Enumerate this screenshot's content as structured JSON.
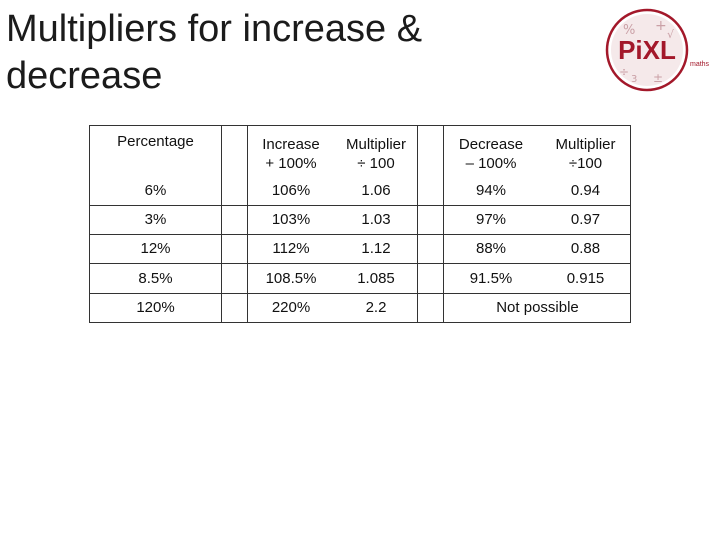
{
  "title": {
    "line1": "Multipliers for increase &",
    "line2": "decrease"
  },
  "logo": {
    "text": "PiXL",
    "subtext": "maths",
    "brand_color": "#a3182a"
  },
  "table": {
    "headers": {
      "percentage": "Percentage",
      "increase": [
        "Increase",
        "+ 100%"
      ],
      "inc_multiplier": [
        "Multiplier",
        "÷ 100"
      ],
      "decrease": [
        "Decrease",
        "– 100%"
      ],
      "dec_multiplier": [
        "Multiplier",
        "÷100"
      ]
    },
    "rows": [
      {
        "percentage": "6%",
        "increase": "106%",
        "inc_multiplier": "1.06",
        "decrease": "94%",
        "dec_multiplier": "0.94"
      },
      {
        "percentage": "3%",
        "increase": "103%",
        "inc_multiplier": "1.03",
        "decrease": "97%",
        "dec_multiplier": "0.97"
      },
      {
        "percentage": "12%",
        "increase": "112%",
        "inc_multiplier": "1.12",
        "decrease": "88%",
        "dec_multiplier": "0.88"
      },
      {
        "percentage": "8.5%",
        "increase": "108.5%",
        "inc_multiplier": "1.085",
        "decrease": "91.5%",
        "dec_multiplier": "0.915"
      },
      {
        "percentage": "120%",
        "increase": "220%",
        "inc_multiplier": "2.2",
        "decrease_combined": "Not possible"
      }
    ]
  }
}
